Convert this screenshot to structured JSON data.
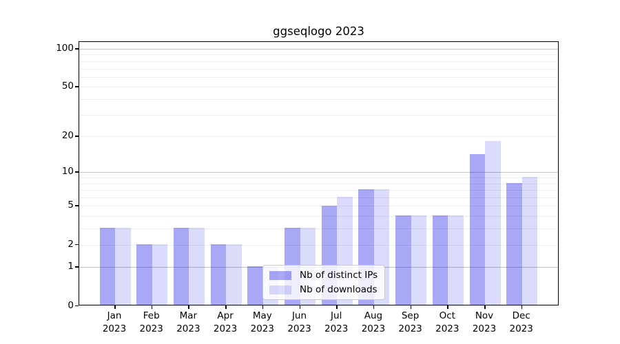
{
  "chart_data": {
    "type": "bar",
    "title": "ggseqlogo 2023",
    "yscale": "log1p",
    "ylim": [
      0,
      100
    ],
    "yticks": [
      0,
      1,
      2,
      5,
      10,
      20,
      50,
      100
    ],
    "grid_major_values": [
      1,
      10,
      100
    ],
    "grid_minor_values": [
      2,
      3,
      4,
      5,
      6,
      7,
      8,
      9,
      20,
      30,
      40,
      50,
      60,
      70,
      80,
      90
    ],
    "grid_major_color": "#c2c2c2",
    "grid_minor_color": "#ededed",
    "legend_position": "lower center",
    "categories": [
      {
        "month": "Jan",
        "year": "2023"
      },
      {
        "month": "Feb",
        "year": "2023"
      },
      {
        "month": "Mar",
        "year": "2023"
      },
      {
        "month": "Apr",
        "year": "2023"
      },
      {
        "month": "May",
        "year": "2023"
      },
      {
        "month": "Jun",
        "year": "2023"
      },
      {
        "month": "Jul",
        "year": "2023"
      },
      {
        "month": "Aug",
        "year": "2023"
      },
      {
        "month": "Sep",
        "year": "2023"
      },
      {
        "month": "Oct",
        "year": "2023"
      },
      {
        "month": "Nov",
        "year": "2023"
      },
      {
        "month": "Dec",
        "year": "2023"
      }
    ],
    "series": [
      {
        "name": "Nb of distinct IPs",
        "color": "rgba(0,0,230,0.34)",
        "values": [
          3,
          2,
          3,
          2,
          1,
          3,
          5,
          7,
          4,
          4,
          14,
          8
        ]
      },
      {
        "name": "Nb of downloads",
        "color": "rgba(0,0,230,0.14)",
        "values": [
          3,
          2,
          3,
          2,
          1,
          3,
          6,
          7,
          4,
          4,
          18,
          9
        ]
      }
    ]
  }
}
